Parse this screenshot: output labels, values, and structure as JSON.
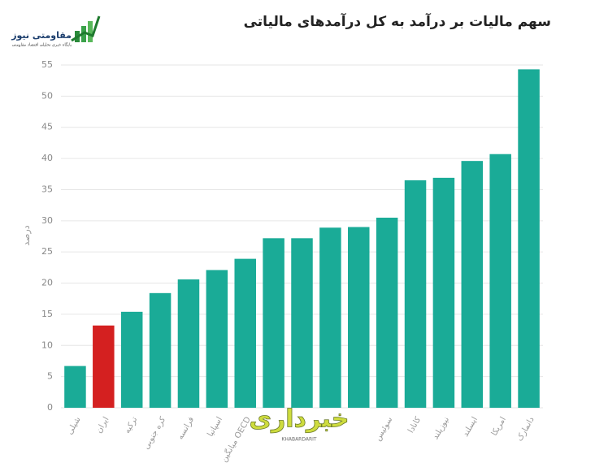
{
  "chart_data": {
    "type": "bar",
    "title": "سهم مالیات بر درآمد به کل درآمدهای مالیاتی",
    "y_label": "درصد",
    "categories": [
      "شیلی",
      "ایران",
      "ترکیه",
      "کره جنوبی",
      "فرانسه",
      "اسپانیا",
      "میانگین OECD",
      null,
      null,
      null,
      null,
      "سوئیس",
      "کانادا",
      "نیوزیلند",
      "ایسلند",
      "امریکا",
      "دانمارک"
    ],
    "values": [
      6.7,
      13.2,
      15.4,
      18.4,
      20.6,
      22.1,
      23.9,
      27.2,
      27.2,
      28.9,
      29.0,
      30.5,
      36.5,
      36.9,
      39.6,
      40.7,
      54.3
    ],
    "colors": [
      "#1aab97",
      "#d42020",
      "#1aab97",
      "#1aab97",
      "#1aab97",
      "#1aab97",
      "#1aab97",
      "#1aab97",
      "#1aab97",
      "#1aab97",
      "#1aab97",
      "#1aab97",
      "#1aab97",
      "#1aab97",
      "#1aab97",
      "#1aab97",
      "#1aab97"
    ],
    "ylim": [
      0,
      55
    ],
    "yticks": [
      0,
      5,
      10,
      15,
      20,
      25,
      30,
      35,
      40,
      45,
      50,
      55
    ],
    "grid": true
  },
  "logo": {
    "name": "مقاومتی نیوز",
    "tagline": "پایگاه خبری تحلیلی اقتصاد مقاومتی"
  },
  "watermark": {
    "name": "خبرداری",
    "latin": "KHABARDARIT"
  }
}
